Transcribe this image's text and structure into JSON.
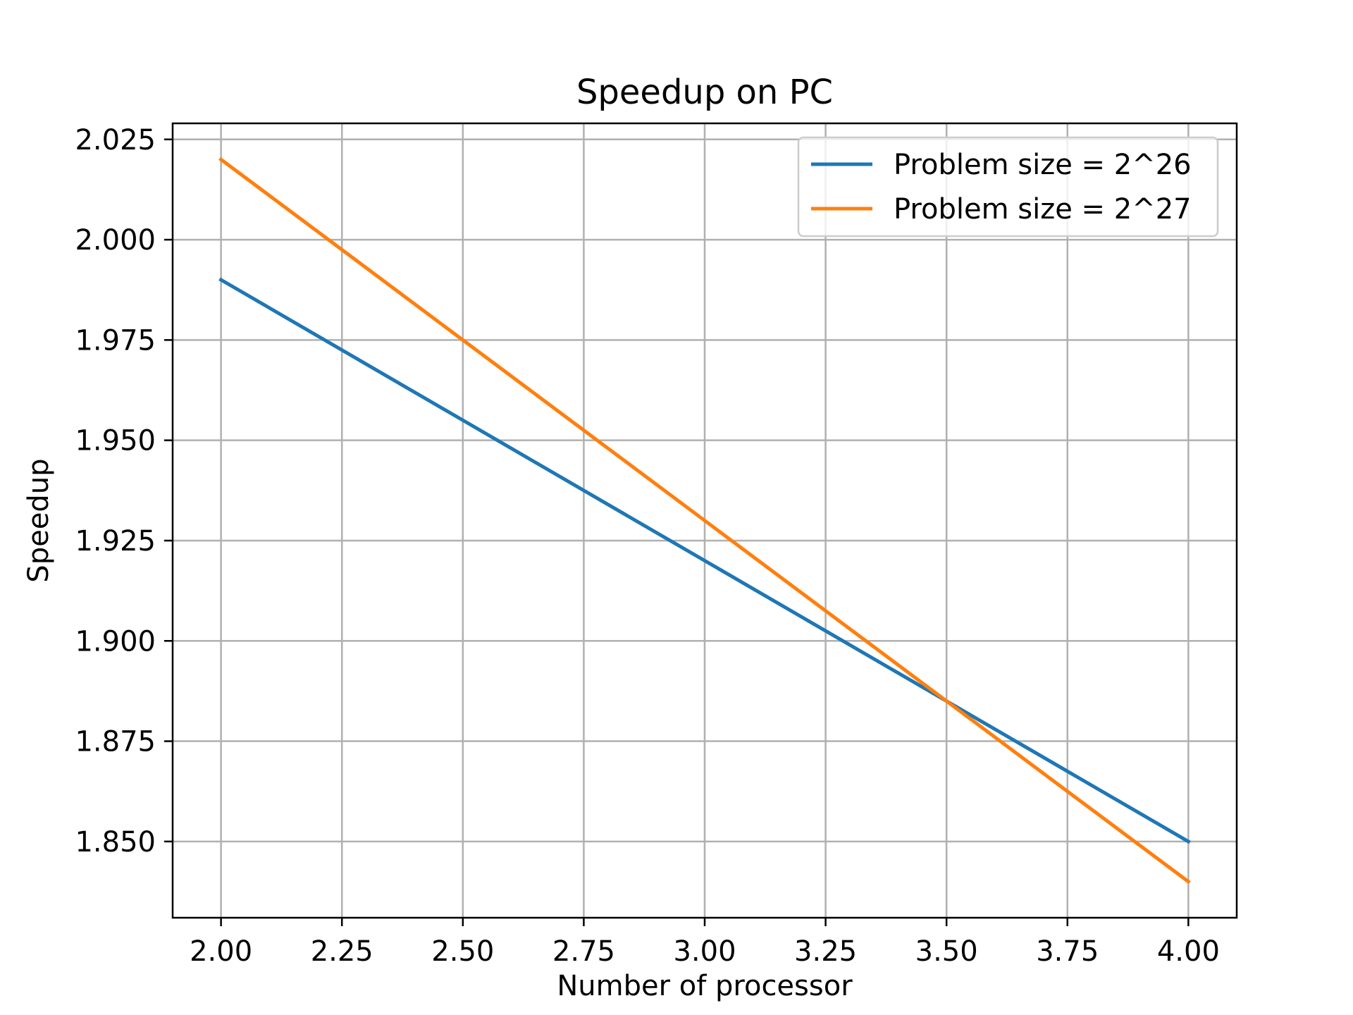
{
  "chart_data": {
    "type": "line",
    "title": "Speedup on PC",
    "xlabel": "Number of processor",
    "ylabel": "Speedup",
    "xlim": [
      1.9,
      4.1
    ],
    "ylim": [
      1.831,
      2.029
    ],
    "xticks": [
      2.0,
      2.25,
      2.5,
      2.75,
      3.0,
      3.25,
      3.5,
      3.75,
      4.0
    ],
    "xtick_labels": [
      "2.00",
      "2.25",
      "2.50",
      "2.75",
      "3.00",
      "3.25",
      "3.50",
      "3.75",
      "4.00"
    ],
    "yticks": [
      1.85,
      1.875,
      1.9,
      1.925,
      1.95,
      1.975,
      2.0,
      2.025
    ],
    "ytick_labels": [
      "1.850",
      "1.875",
      "1.900",
      "1.925",
      "1.950",
      "1.975",
      "2.000",
      "2.025"
    ],
    "grid": true,
    "legend_position": "top-right",
    "series": [
      {
        "name": "Problem size = 2^26",
        "color": "#1f77b4",
        "x": [
          2,
          4
        ],
        "y": [
          1.99,
          1.85
        ]
      },
      {
        "name": "Problem size = 2^27",
        "color": "#ff7f0e",
        "x": [
          2,
          4
        ],
        "y": [
          2.02,
          1.84
        ]
      }
    ]
  }
}
